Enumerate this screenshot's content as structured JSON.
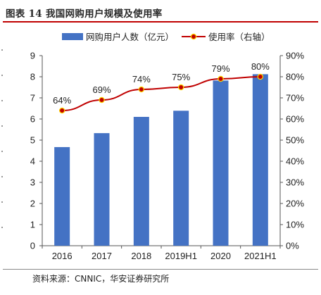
{
  "header": {
    "title": "图表 14  我国网购用户规模及使用率"
  },
  "footer": {
    "source": "资料来源：CNNIC，华安证券研究所"
  },
  "chart_data": {
    "type": "bar",
    "categories": [
      "2016",
      "2017",
      "2018",
      "2019H1",
      "2020",
      "2021H1"
    ],
    "series": [
      {
        "name": "网购用户人数（亿元）",
        "type": "bar",
        "axis": "left",
        "values": [
          4.67,
          5.33,
          6.1,
          6.39,
          7.82,
          8.12
        ],
        "color": "#4472c4"
      },
      {
        "name": "使用率（右轴）",
        "type": "line",
        "axis": "right",
        "values": [
          64,
          69,
          74,
          75,
          79,
          80
        ],
        "data_labels": [
          "64%",
          "69%",
          "74%",
          "75%",
          "79%",
          "80%"
        ],
        "color": "#c00000"
      }
    ],
    "ylim": [
      0,
      9
    ],
    "yticks": [
      "0",
      "1",
      "2",
      "3",
      "4",
      "5",
      "6",
      "7",
      "8",
      "9"
    ],
    "y2lim": [
      0,
      90
    ],
    "y2ticks": [
      "0%",
      "10%",
      "20%",
      "30%",
      "40%",
      "50%",
      "60%",
      "70%",
      "80%",
      "90%"
    ],
    "legend_position": "top",
    "grid": false
  }
}
